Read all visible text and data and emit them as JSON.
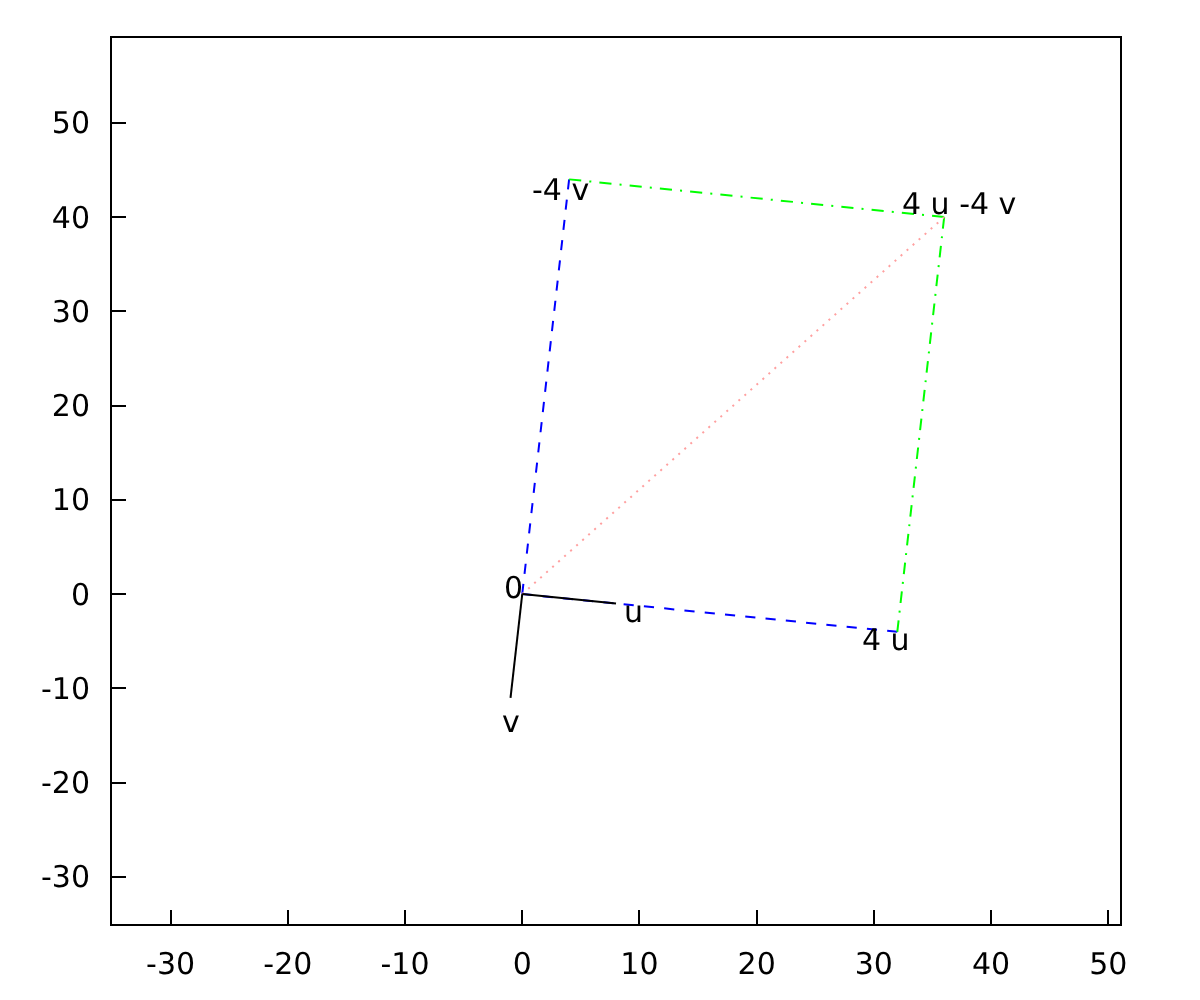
{
  "chart_data": {
    "type": "line",
    "xlim": [
      -35,
      51
    ],
    "ylim": [
      -35,
      59
    ],
    "xticks": [
      -30,
      -20,
      -10,
      0,
      10,
      20,
      30,
      40,
      50
    ],
    "yticks": [
      -30,
      -20,
      -10,
      0,
      10,
      20,
      30,
      40,
      50
    ],
    "grid": false,
    "series": [
      {
        "color": "#0000ff",
        "line_style": "dashed",
        "x": [
          0,
          32
        ],
        "values": [
          0,
          -4
        ]
      },
      {
        "color": "#0000ff",
        "line_style": "dashed",
        "x": [
          0,
          4
        ],
        "values": [
          0,
          44
        ]
      },
      {
        "color": "#00ff00",
        "line_style": "dashdot",
        "x": [
          4,
          36
        ],
        "values": [
          44,
          40
        ]
      },
      {
        "color": "#00ff00",
        "line_style": "dashdot",
        "x": [
          32,
          36
        ],
        "values": [
          -4,
          40
        ]
      },
      {
        "color": "#ffa0a0",
        "line_style": "dotted",
        "x": [
          0,
          36
        ],
        "values": [
          0,
          40
        ]
      },
      {
        "color": "#000000",
        "line_style": "solid",
        "x": [
          0,
          8
        ],
        "values": [
          0,
          -1
        ]
      },
      {
        "color": "#000000",
        "line_style": "solid",
        "x": [
          0,
          -1
        ],
        "values": [
          0,
          -11
        ]
      }
    ],
    "annotations": [
      {
        "text": "0",
        "x": 0,
        "y": 0
      },
      {
        "text": "u",
        "x": 8,
        "y": -1
      },
      {
        "text": "v",
        "x": -1,
        "y": -11
      },
      {
        "text": "4 u",
        "x": 32,
        "y": -4
      },
      {
        "text": "-4 v",
        "x": 4,
        "y": 44
      },
      {
        "text": "4 u -4 v",
        "x": 36,
        "y": 40
      }
    ]
  }
}
